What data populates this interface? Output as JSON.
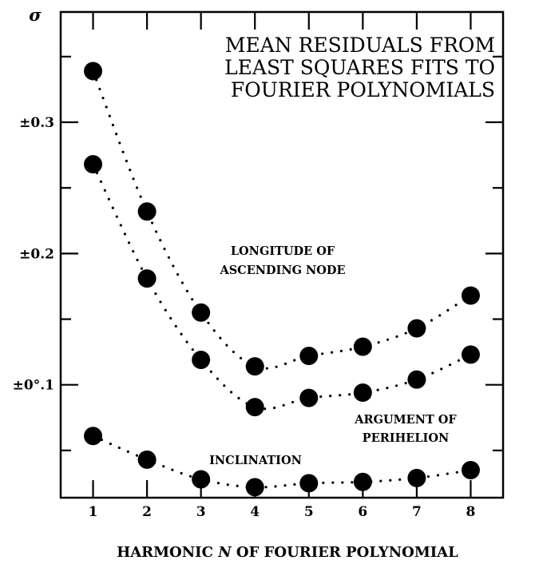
{
  "chart_data": {
    "type": "scatter",
    "title_lines": [
      "MEAN RESIDUALS FROM",
      "LEAST SQUARES FITS TO",
      "FOURIER POLYNOMIALS"
    ],
    "ylabel": "σ",
    "xlabel": {
      "prefix": "HARMONIC ",
      "variable": "N",
      "suffix": " OF FOURIER POLYNOMIAL"
    },
    "x": [
      1,
      2,
      3,
      4,
      5,
      6,
      7,
      8
    ],
    "xlim": [
      0.4,
      8.6
    ],
    "ylim": [
      0.014,
      0.384
    ],
    "y_ticks": [
      {
        "value": 0.1,
        "label": "±0°.1"
      },
      {
        "value": 0.2,
        "label": "±0.2"
      },
      {
        "value": 0.3,
        "label": "±0.3"
      }
    ],
    "x_ticks": [
      {
        "value": 1,
        "label": "1"
      },
      {
        "value": 2,
        "label": "2"
      },
      {
        "value": 3,
        "label": "3"
      },
      {
        "value": 4,
        "label": "4"
      },
      {
        "value": 5,
        "label": "5"
      },
      {
        "value": 6,
        "label": "6"
      },
      {
        "value": 7,
        "label": "7"
      },
      {
        "value": 8,
        "label": "8"
      }
    ],
    "grid": false,
    "connector_style": "dotted",
    "series": [
      {
        "label_lines": [
          "LONGITUDE OF",
          "ASCENDING NODE"
        ],
        "values": [
          0.339,
          0.232,
          0.155,
          0.114,
          0.122,
          0.129,
          0.143,
          0.168
        ]
      },
      {
        "label_lines": [
          "ARGUMENT OF",
          "PERIHELION"
        ],
        "values": [
          0.268,
          0.181,
          0.119,
          0.083,
          0.09,
          0.094,
          0.104,
          0.123
        ]
      },
      {
        "label_lines": [
          "INCLINATION"
        ],
        "values": [
          0.061,
          0.043,
          0.028,
          0.022,
          0.025,
          0.026,
          0.029,
          0.035
        ]
      }
    ]
  }
}
